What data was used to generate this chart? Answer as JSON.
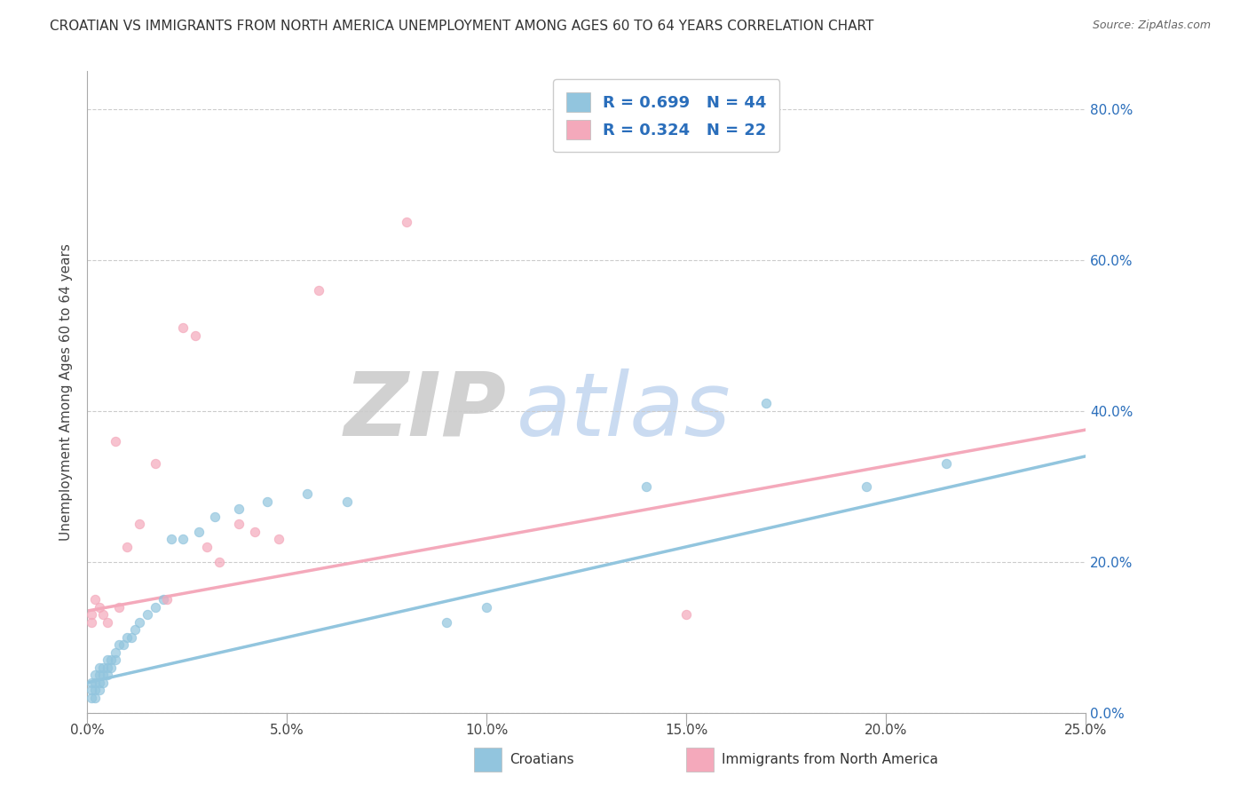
{
  "title": "CROATIAN VS IMMIGRANTS FROM NORTH AMERICA UNEMPLOYMENT AMONG AGES 60 TO 64 YEARS CORRELATION CHART",
  "source": "Source: ZipAtlas.com",
  "legend_labels": [
    "Croatians",
    "Immigrants from North America"
  ],
  "ylabel": "Unemployment Among Ages 60 to 64 years",
  "blue_color": "#92c5de",
  "pink_color": "#f4a9bb",
  "text_color": "#2a6ebb",
  "R_blue": "0.699",
  "N_blue": "44",
  "R_pink": "0.324",
  "N_pink": "22",
  "xlim": [
    0.0,
    0.25
  ],
  "ylim": [
    0.0,
    0.85
  ],
  "blue_scatter_x": [
    0.001,
    0.001,
    0.001,
    0.002,
    0.002,
    0.002,
    0.002,
    0.003,
    0.003,
    0.003,
    0.003,
    0.004,
    0.004,
    0.004,
    0.005,
    0.005,
    0.005,
    0.006,
    0.006,
    0.007,
    0.007,
    0.008,
    0.009,
    0.01,
    0.011,
    0.012,
    0.013,
    0.015,
    0.017,
    0.019,
    0.021,
    0.024,
    0.028,
    0.032,
    0.038,
    0.045,
    0.055,
    0.065,
    0.09,
    0.1,
    0.14,
    0.17,
    0.195,
    0.215
  ],
  "blue_scatter_y": [
    0.02,
    0.03,
    0.04,
    0.02,
    0.03,
    0.04,
    0.05,
    0.03,
    0.04,
    0.05,
    0.06,
    0.04,
    0.05,
    0.06,
    0.05,
    0.06,
    0.07,
    0.06,
    0.07,
    0.07,
    0.08,
    0.09,
    0.09,
    0.1,
    0.1,
    0.11,
    0.12,
    0.13,
    0.14,
    0.15,
    0.23,
    0.23,
    0.24,
    0.26,
    0.27,
    0.28,
    0.29,
    0.28,
    0.12,
    0.14,
    0.3,
    0.41,
    0.3,
    0.33
  ],
  "pink_scatter_x": [
    0.001,
    0.001,
    0.002,
    0.003,
    0.004,
    0.005,
    0.007,
    0.008,
    0.01,
    0.013,
    0.017,
    0.02,
    0.024,
    0.027,
    0.03,
    0.033,
    0.038,
    0.042,
    0.048,
    0.058,
    0.08,
    0.15
  ],
  "pink_scatter_y": [
    0.12,
    0.13,
    0.15,
    0.14,
    0.13,
    0.12,
    0.36,
    0.14,
    0.22,
    0.25,
    0.33,
    0.15,
    0.51,
    0.5,
    0.22,
    0.2,
    0.25,
    0.24,
    0.23,
    0.56,
    0.65,
    0.13
  ],
  "blue_trend_x": [
    0.0,
    0.25
  ],
  "blue_trend_y": [
    0.04,
    0.34
  ],
  "pink_trend_x": [
    0.0,
    0.25
  ],
  "pink_trend_y": [
    0.135,
    0.375
  ],
  "ytick_labels": [
    "0.0%",
    "20.0%",
    "40.0%",
    "60.0%",
    "80.0%"
  ],
  "ytick_values": [
    0.0,
    0.2,
    0.4,
    0.6,
    0.8
  ],
  "xtick_labels": [
    "0.0%",
    "5.0%",
    "10.0%",
    "15.0%",
    "20.0%",
    "25.0%"
  ],
  "xtick_values": [
    0.0,
    0.05,
    0.1,
    0.15,
    0.2,
    0.25
  ],
  "watermark_ZIP_color": "#cccccc",
  "watermark_atlas_color": "#c5d8f0",
  "background_color": "#ffffff"
}
